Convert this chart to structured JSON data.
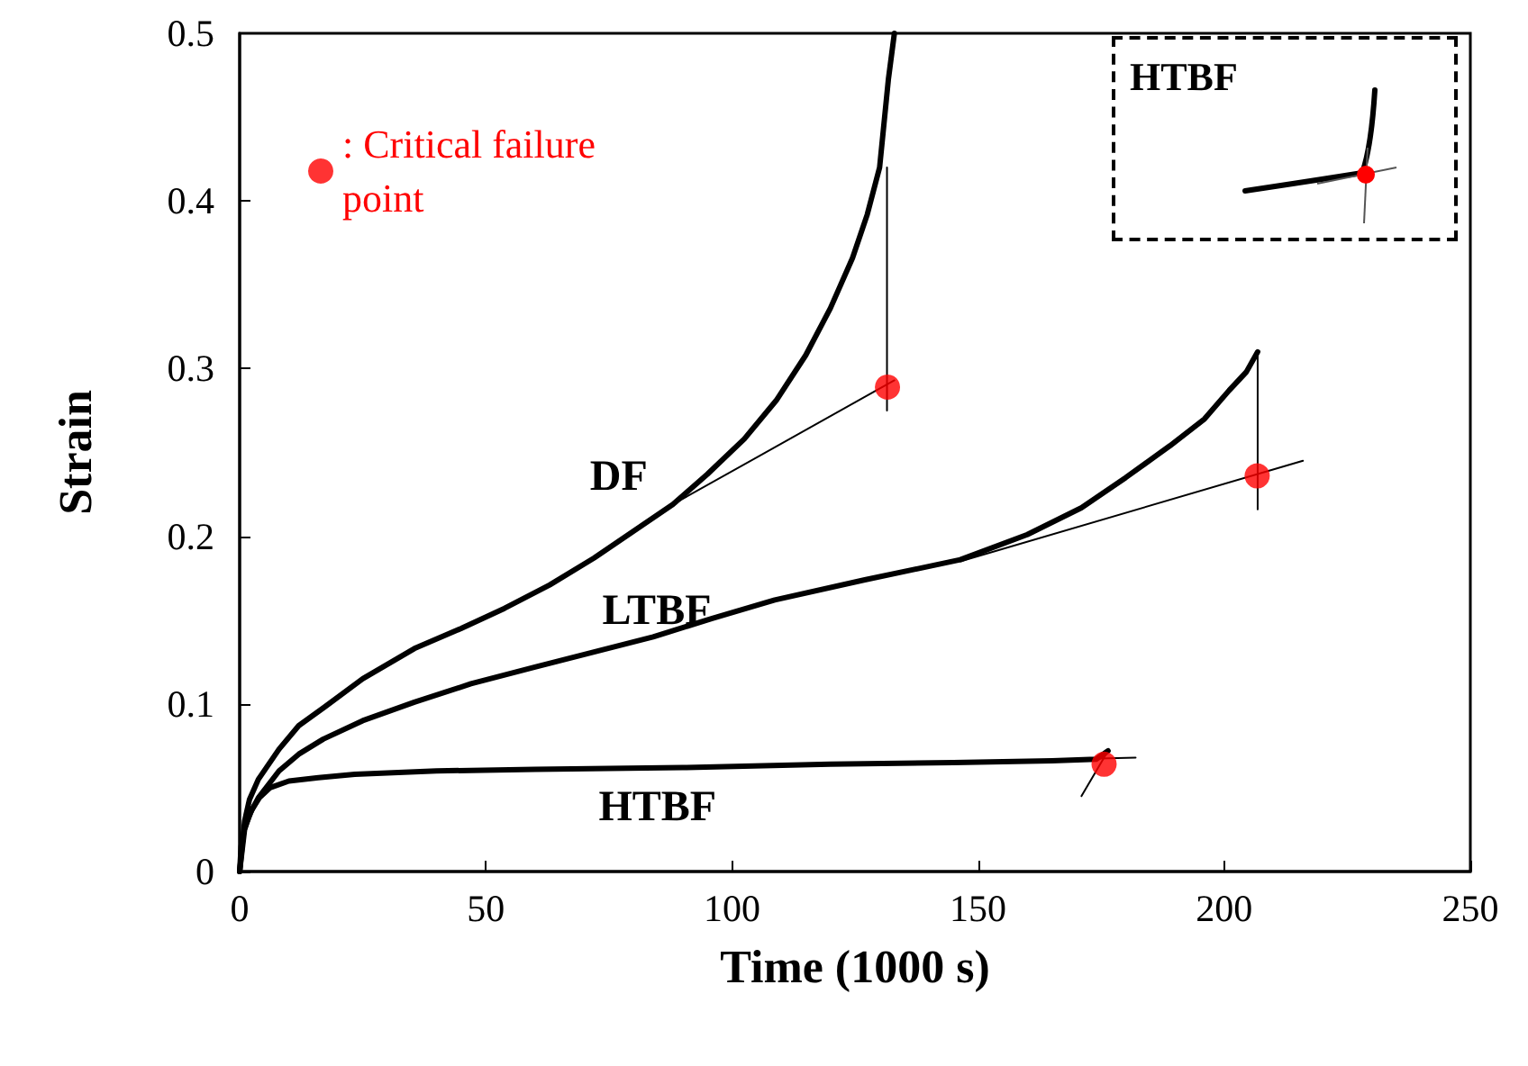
{
  "chart_data": {
    "type": "line",
    "xlabel": "Time (1000 s)",
    "ylabel": "Strain",
    "annotations": [
      "HTBF"
    ],
    "xlim": [
      0,
      250
    ],
    "xticks": [
      0,
      50,
      100,
      150,
      200,
      250
    ],
    "ylim": [
      0,
      0.5
    ],
    "yticks": [
      0,
      0.1,
      0.2,
      0.3,
      0.4,
      0.5
    ],
    "grid": false,
    "legend": "top left",
    "marker": "none",
    "series": [
      {
        "name": "DF",
        "color": "#000000",
        "x": [
          0,
          1,
          2,
          3.8,
          8,
          12,
          17.2,
          25,
          35.5,
          45,
          53.8,
          63,
          72,
          80,
          88,
          95,
          102.5,
          109,
          115,
          120,
          124.5,
          127.5,
          130,
          131.8,
          133
        ],
        "values": [
          0,
          0.03,
          0.043,
          0.055,
          0.073,
          0.087,
          0.098,
          0.115,
          0.133,
          0.145,
          0.157,
          0.171,
          0.187,
          0.203,
          0.219,
          0.237,
          0.258,
          0.281,
          0.308,
          0.336,
          0.366,
          0.392,
          0.42,
          0.473,
          0.5
        ]
      },
      {
        "name": "LTBF",
        "color": "#000000",
        "x": [
          0,
          1,
          2,
          3.8,
          8,
          12,
          17,
          25,
          35.5,
          47,
          60,
          72,
          84,
          96,
          108.7,
          127,
          146.4,
          160,
          171,
          180,
          189,
          196,
          201,
          204.5,
          206.8
        ],
        "values": [
          0,
          0.025,
          0.034,
          0.044,
          0.06,
          0.07,
          0.079,
          0.09,
          0.101,
          0.112,
          0.122,
          0.131,
          0.14,
          0.151,
          0.162,
          0.174,
          0.186,
          0.201,
          0.217,
          0.235,
          0.254,
          0.27,
          0.287,
          0.298,
          0.31
        ]
      },
      {
        "name": "HTBF",
        "color": "#000000",
        "x": [
          0,
          0.3,
          1,
          2.5,
          4,
          6.2,
          10,
          16,
          23.4,
          40,
          60,
          90,
          120,
          145,
          165,
          174,
          176.4
        ],
        "values": [
          0,
          0.015,
          0.026,
          0.037,
          0.044,
          0.05,
          0.054,
          0.056,
          0.058,
          0.06,
          0.061,
          0.062,
          0.064,
          0.065,
          0.066,
          0.067,
          0.072
        ]
      },
      {
        "type": "line",
        "color": "#000000",
        "x": [
          88,
          133
        ],
        "values": [
          0.219,
          0.293
        ]
      },
      {
        "type": "line",
        "color": "#000000",
        "x": [
          131.5,
          131.5
        ],
        "values": [
          0.42,
          0.275
        ]
      },
      {
        "type": "line",
        "color": "#000000",
        "x": [
          146.4,
          216
        ],
        "values": [
          0.185,
          0.245
        ]
      },
      {
        "type": "line",
        "color": "#000000",
        "x": [
          206.8,
          206.8
        ],
        "values": [
          0.31,
          0.216
        ]
      },
      {
        "type": "line",
        "color": "#000000",
        "x": [
          100,
          182
        ],
        "values": [
          0.062,
          0.068
        ]
      },
      {
        "type": "line",
        "color": "#000000",
        "x": [
          171,
          176.4
        ],
        "values": [
          0.045,
          0.072
        ]
      },
      {
        "type": "scatter",
        "name": ": Critical failure point",
        "color": "#ff0000",
        "marker": "circle",
        "x": [
          131.6,
          206.7,
          175.6
        ],
        "values": [
          0.289,
          0.236,
          0.064
        ]
      }
    ]
  }
}
